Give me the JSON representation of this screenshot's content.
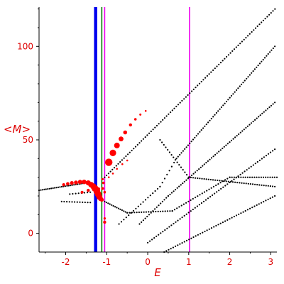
{
  "chart_data": {
    "type": "scatter",
    "xlabel": "E",
    "ylabel": "<M>",
    "xlim": [
      -2.65,
      3.15
    ],
    "ylim": [
      -10,
      121
    ],
    "x_ticks": [
      -2,
      -1,
      0,
      1,
      2,
      3
    ],
    "x_tick_labels": [
      "-2",
      "-1",
      "0",
      "1",
      "2",
      "3"
    ],
    "y_ticks": [
      0,
      50,
      100
    ],
    "y_tick_labels": [
      "0",
      "50",
      "100"
    ],
    "grid": false,
    "vertical_lines": [
      {
        "x": -1.27,
        "color": "#0000ee",
        "width": "thick"
      },
      {
        "x": -1.12,
        "color": "#008000",
        "width": "thin"
      },
      {
        "x": -1.05,
        "color": "#ee00ee",
        "width": "thin"
      },
      {
        "x": 1.02,
        "color": "#ee00ee",
        "width": "thin"
      }
    ],
    "series": [
      {
        "color": "#000000",
        "marker_size": 1.1,
        "curves": [
          {
            "from": [
              -2.65,
              23
            ],
            "to": [
              -1.5,
              27
            ],
            "n": 28
          },
          {
            "from": [
              -1.05,
              30
            ],
            "to": [
              3.15,
              121
            ],
            "n": 90
          },
          {
            "from": [
              -2.1,
              17
            ],
            "to": [
              -1.4,
              16.5
            ],
            "n": 12
          },
          {
            "from": [
              -1.05,
              17
            ],
            "to": [
              -0.5,
              11
            ],
            "n": 14
          },
          {
            "from": [
              -0.5,
              11
            ],
            "to": [
              0.6,
              12
            ],
            "n": 20
          },
          {
            "from": [
              0.6,
              12
            ],
            "to": [
              2.0,
              30
            ],
            "n": 26
          },
          {
            "from": [
              2.0,
              30
            ],
            "to": [
              3.15,
              30
            ],
            "n": 22
          },
          {
            "from": [
              -0.7,
              5
            ],
            "to": [
              0.3,
              25
            ],
            "n": 18
          },
          {
            "from": [
              0.3,
              25
            ],
            "to": [
              0.7,
              40
            ],
            "n": 8
          },
          {
            "from": [
              0.7,
              40
            ],
            "to": [
              3.1,
              100
            ],
            "n": 60
          },
          {
            "from": [
              -0.2,
              5
            ],
            "to": [
              0.5,
              20
            ],
            "n": 16
          },
          {
            "from": [
              0.5,
              20
            ],
            "to": [
              3.1,
              70
            ],
            "n": 60
          },
          {
            "from": [
              0.0,
              -5
            ],
            "to": [
              3.1,
              45
            ],
            "n": 60
          },
          {
            "from": [
              0.4,
              -10
            ],
            "to": [
              3.1,
              20
            ],
            "n": 50
          },
          {
            "from": [
              0.3,
              50
            ],
            "to": [
              1.0,
              30
            ],
            "n": 16
          },
          {
            "from": [
              1.0,
              30
            ],
            "to": [
              3.1,
              25
            ],
            "n": 40
          },
          {
            "from": [
              -1.4,
              22
            ],
            "to": [
              -1.9,
              21
            ],
            "n": 8
          }
        ]
      },
      {
        "color": "#ff0000",
        "points": [
          [
            -2.05,
            26,
            2.2
          ],
          [
            -1.95,
            26.5,
            2.4
          ],
          [
            -1.85,
            27,
            2.6
          ],
          [
            -1.75,
            27.2,
            2.8
          ],
          [
            -1.65,
            27.5,
            3.0
          ],
          [
            -1.55,
            27.5,
            3.2
          ],
          [
            -1.45,
            27,
            3.6
          ],
          [
            -1.38,
            26,
            4.0
          ],
          [
            -1.32,
            25,
            4.4
          ],
          [
            -1.28,
            24,
            4.6
          ],
          [
            -1.24,
            22.5,
            4.8
          ],
          [
            -1.21,
            21,
            4.6
          ],
          [
            -1.18,
            19.5,
            4.2
          ],
          [
            -1.15,
            18.5,
            3.4
          ],
          [
            -1.12,
            18,
            2.8
          ],
          [
            -1.6,
            22,
            2.0
          ],
          [
            -1.45,
            23,
            2.2
          ],
          [
            -1.32,
            23.5,
            2.4
          ],
          [
            -1.2,
            23.8,
            2.2
          ],
          [
            -1.1,
            24,
            2.0
          ],
          [
            -1.05,
            22,
            1.8
          ],
          [
            -1.08,
            27,
            1.8
          ],
          [
            -1.1,
            29,
            1.6
          ],
          [
            -1.05,
            6,
            2.2
          ],
          [
            -1.05,
            8,
            1.6
          ],
          [
            -0.95,
            38,
            5.2
          ],
          [
            -0.85,
            43,
            4.6
          ],
          [
            -0.75,
            47,
            4.0
          ],
          [
            -0.65,
            50.5,
            3.4
          ],
          [
            -0.55,
            54,
            2.8
          ],
          [
            -0.42,
            58,
            2.2
          ],
          [
            -0.3,
            61,
            1.8
          ],
          [
            -0.18,
            63.5,
            1.5
          ],
          [
            -0.05,
            65.5,
            1.3
          ],
          [
            -0.95,
            30,
            1.3
          ],
          [
            -0.85,
            32,
            1.3
          ],
          [
            -0.75,
            34.5,
            1.3
          ],
          [
            -0.62,
            37,
            1.3
          ],
          [
            -0.5,
            39,
            1.3
          ]
        ]
      }
    ]
  }
}
